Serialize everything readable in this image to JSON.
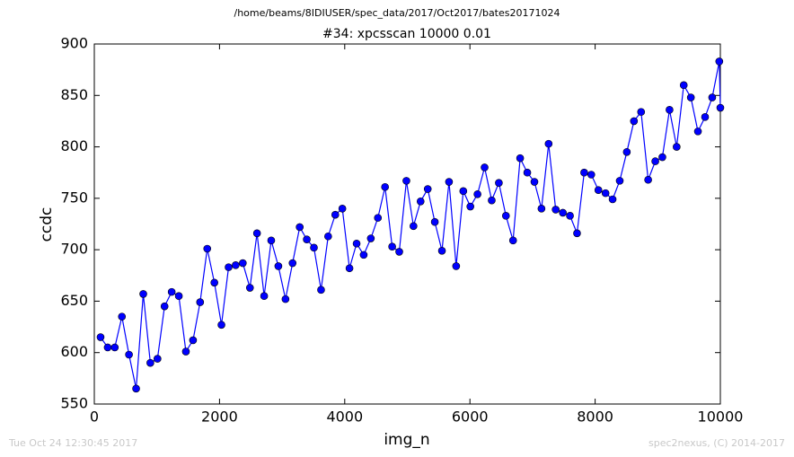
{
  "chart_data": {
    "type": "line",
    "suptitle": "/home/beams/8IDIUSER/spec_data/2017/Oct2017/bates20171024",
    "title": "#34: xpcsscan 10000 0.01",
    "x_label": "img_n",
    "y_label": "ccdc",
    "footer_left": "Tue Oct 24 12:30:45 2017",
    "footer_right": "spec2nexus, (C) 2014-2017",
    "x": [
      100,
      214,
      327,
      441,
      554,
      668,
      782,
      895,
      1009,
      1122,
      1236,
      1350,
      1463,
      1577,
      1690,
      1804,
      1918,
      2031,
      2145,
      2258,
      2372,
      2486,
      2599,
      2713,
      2826,
      2940,
      3054,
      3167,
      3281,
      3394,
      3508,
      3622,
      3735,
      3849,
      3962,
      4076,
      4190,
      4303,
      4417,
      4530,
      4644,
      4758,
      4871,
      4985,
      5098,
      5212,
      5326,
      5439,
      5553,
      5666,
      5780,
      5894,
      6007,
      6121,
      6234,
      6348,
      6462,
      6575,
      6689,
      6802,
      6916,
      7030,
      7143,
      7257,
      7370,
      7484,
      7598,
      7711,
      7825,
      7938,
      8052,
      8166,
      8279,
      8393,
      8506,
      8620,
      8734,
      8847,
      8961,
      9074,
      9188,
      9302,
      9415,
      9529,
      9642,
      9756,
      9870,
      9983,
      10000
    ],
    "series": [
      {
        "color": "#0000ff",
        "values": [
          615,
          605,
          605,
          635,
          598,
          565,
          657,
          590,
          594,
          645,
          659,
          655,
          601,
          612,
          649,
          701,
          668,
          627,
          683,
          685,
          687,
          663,
          716,
          655,
          709,
          684,
          652,
          687,
          722,
          710,
          702,
          661,
          713,
          734,
          740,
          682,
          706,
          695,
          711,
          731,
          761,
          703,
          698,
          767,
          723,
          747,
          759,
          727,
          699,
          766,
          684,
          757,
          742,
          754,
          780,
          748,
          765,
          733,
          709,
          789,
          775,
          766,
          740,
          803,
          739,
          736,
          733,
          716,
          775,
          773,
          758,
          755,
          749,
          767,
          795,
          825,
          834,
          768,
          786,
          790,
          836,
          800,
          860,
          848,
          815,
          829,
          848,
          883,
          838
        ]
      }
    ],
    "xlim": [
      0,
      10000
    ],
    "xticks": [
      0,
      2000,
      4000,
      6000,
      8000,
      10000
    ],
    "ylim": [
      550,
      900
    ],
    "yticks": [
      550,
      600,
      650,
      700,
      750,
      800,
      850,
      900
    ]
  }
}
